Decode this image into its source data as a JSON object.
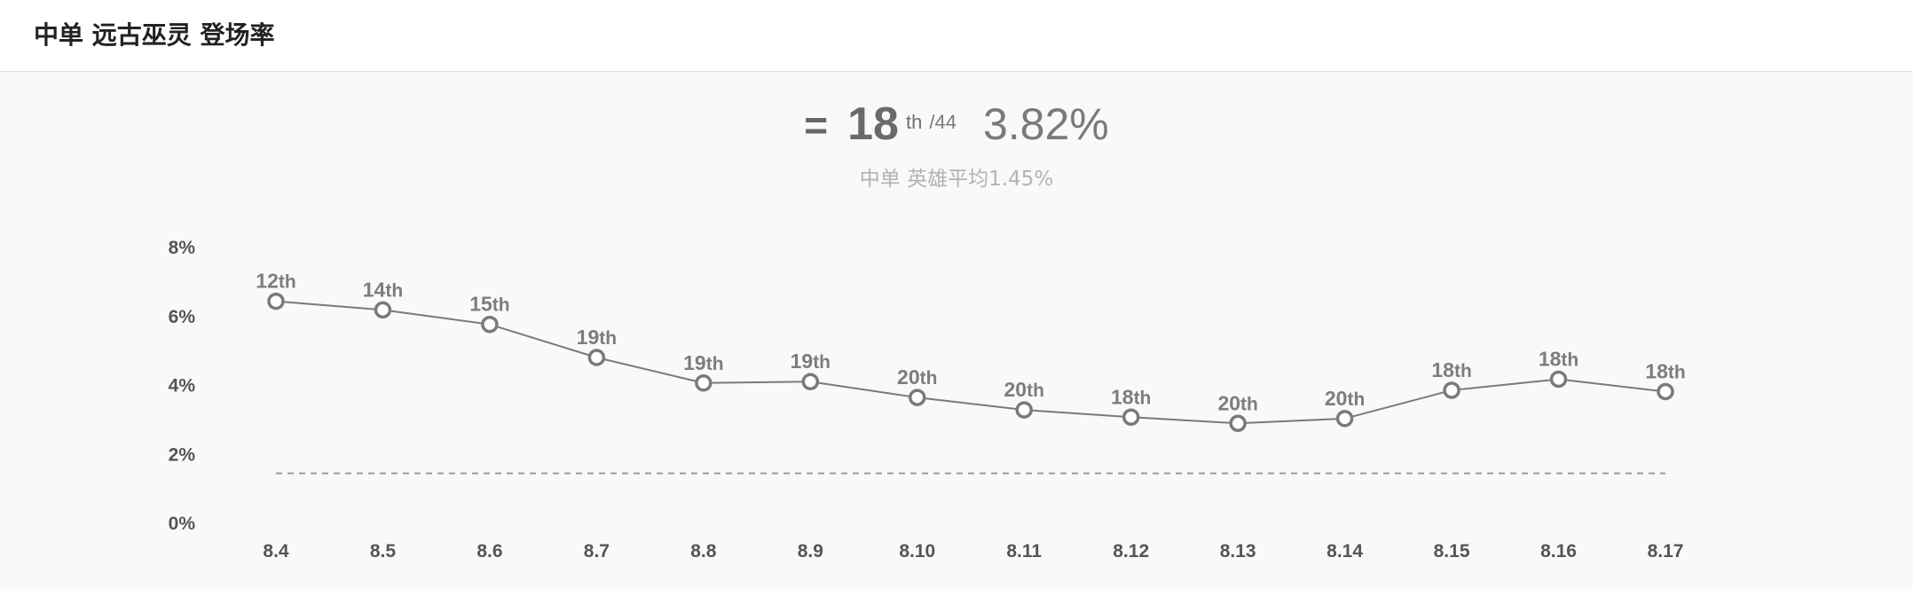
{
  "header": {
    "title": "中单 远古巫灵 登场率"
  },
  "summary": {
    "prefix": "=",
    "rank": "18",
    "rank_suffix": "th",
    "total": "/44",
    "rate": "3.82%",
    "subtitle": "中单 英雄平均1.45%"
  },
  "chart_data": {
    "type": "line",
    "categories": [
      "8.4",
      "8.5",
      "8.6",
      "8.7",
      "8.8",
      "8.9",
      "8.10",
      "8.11",
      "8.12",
      "8.13",
      "8.14",
      "8.15",
      "8.16",
      "8.17"
    ],
    "series": [
      {
        "values": [
          6.44,
          6.19,
          5.77,
          4.81,
          4.07,
          4.11,
          3.65,
          3.29,
          3.08,
          2.9,
          3.04,
          3.86,
          4.18,
          3.82
        ],
        "labels": [
          "12th",
          "14th",
          "15th",
          "19th",
          "19th",
          "19th",
          "20th",
          "20th",
          "18th",
          "20th",
          "20th",
          "18th",
          "18th",
          "18th"
        ]
      }
    ],
    "average": 1.45,
    "ylim": [
      0,
      8
    ],
    "yticks": [
      {
        "value": 0,
        "label": "0%"
      },
      {
        "value": 2,
        "label": "2%"
      },
      {
        "value": 4,
        "label": "4%"
      },
      {
        "value": 6,
        "label": "6%"
      },
      {
        "value": 8,
        "label": "8%"
      }
    ],
    "grid": false,
    "colors": {
      "line": "#7a7a7a",
      "point_fill": "#ffffff",
      "average_line": "#9a9a9a"
    }
  }
}
